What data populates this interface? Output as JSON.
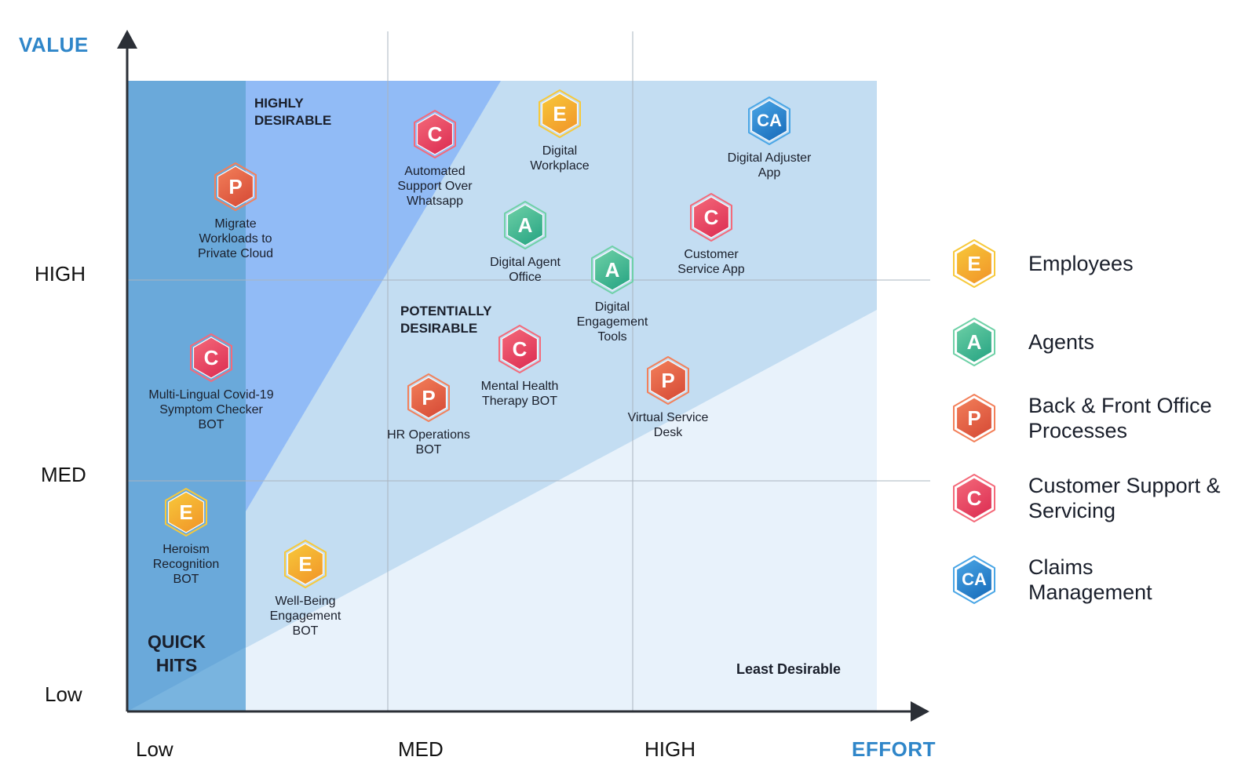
{
  "axes": {
    "y_title": "VALUE",
    "x_title": "EFFORT",
    "y_ticks": [
      "HIGH",
      "MED",
      "Low"
    ],
    "x_ticks": [
      "Low",
      "MED",
      "HIGH"
    ]
  },
  "regions": {
    "highly_desirable": "HIGHLY DESIRABLE",
    "potentially_desirable": "POTENTIALLY DESIRABLE",
    "quick_hits": "QUICK HITS",
    "least_desirable": "Least Desirable"
  },
  "items": [
    {
      "letter": "P",
      "category": "Back & Front Office Processes",
      "label": "Migrate Workloads to Private Cloud"
    },
    {
      "letter": "C",
      "category": "Customer Support & Servicing",
      "label": "Automated Support Over Whatsapp"
    },
    {
      "letter": "E",
      "category": "Employees",
      "label": "Digital Workplace"
    },
    {
      "letter": "CA",
      "category": "Claims Management",
      "label": "Digital Adjuster App"
    },
    {
      "letter": "A",
      "category": "Agents",
      "label": "Digital Agent Office"
    },
    {
      "letter": "C",
      "category": "Customer Support & Servicing",
      "label": "Customer Service App"
    },
    {
      "letter": "A",
      "category": "Agents",
      "label": "Digital Engagement Tools"
    },
    {
      "letter": "C",
      "category": "Customer Support & Servicing",
      "label": "Multi-Lingual Covid-19 Symptom Checker BOT"
    },
    {
      "letter": "C",
      "category": "Customer Support & Servicing",
      "label": "Mental Health Therapy BOT"
    },
    {
      "letter": "P",
      "category": "Back & Front Office Processes",
      "label": "HR Operations BOT"
    },
    {
      "letter": "P",
      "category": "Back & Front Office Processes",
      "label": "Virtual Service Desk"
    },
    {
      "letter": "E",
      "category": "Employees",
      "label": "Heroism Recognition BOT"
    },
    {
      "letter": "E",
      "category": "Employees",
      "label": "Well-Being Engagement BOT"
    }
  ],
  "legend": [
    {
      "letter": "E",
      "label": "Employees",
      "color_from": "#f7c93a",
      "color_to": "#f29b2b"
    },
    {
      "letter": "A",
      "label": "Agents",
      "color_from": "#6fd1a7",
      "color_to": "#2fa987"
    },
    {
      "letter": "P",
      "label": "Back & Front Office Processes",
      "color_from": "#f3805a",
      "color_to": "#d9503a"
    },
    {
      "letter": "C",
      "label": "Customer Support & Servicing",
      "color_from": "#f46a7a",
      "color_to": "#df3457"
    },
    {
      "letter": "CA",
      "label": "Claims Management",
      "color_from": "#4aa6e6",
      "color_to": "#1d72bf"
    }
  ]
}
